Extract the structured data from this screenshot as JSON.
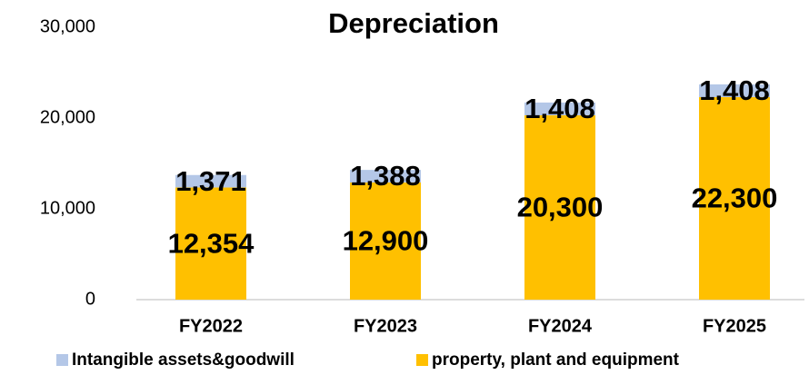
{
  "chart_data": {
    "type": "stacked_bar",
    "title": "Depreciation",
    "categories": [
      "FY2022",
      "FY2023",
      "FY2024",
      "FY2025"
    ],
    "series": [
      {
        "name": "Intangible assets&goodwill",
        "color": "#b4c7e7",
        "values": [
          1371,
          1388,
          1408,
          1408
        ],
        "value_labels": [
          "1,371",
          "1,388",
          "1,408",
          "1,408"
        ]
      },
      {
        "name": "property, plant and equipment",
        "color": "#ffc000",
        "values": [
          12354,
          12900,
          20300,
          22300
        ],
        "value_labels": [
          "12,354",
          "12,900",
          "20,300",
          "22,300"
        ]
      }
    ],
    "ylim": [
      0,
      30000
    ],
    "yticks": [
      0,
      {
        "value": 10000,
        "label": "10,000"
      },
      {
        "value": 20000,
        "label": "20,000"
      },
      {
        "value": 30000,
        "label": "30,000"
      }
    ],
    "grid": false,
    "legend": "bottom"
  }
}
